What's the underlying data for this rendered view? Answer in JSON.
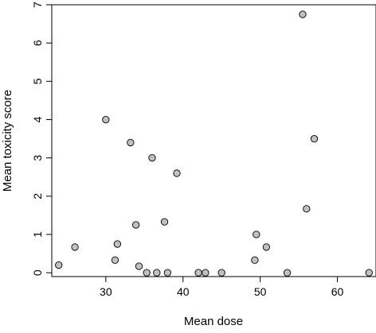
{
  "chart_data": {
    "type": "scatter",
    "title": "",
    "xlabel": "Mean dose",
    "ylabel": "Mean toxicity score",
    "xlim": [
      23,
      65
    ],
    "ylim": [
      -0.1,
      7
    ],
    "x_ticks": [
      30,
      40,
      50,
      60
    ],
    "y_ticks": [
      0,
      1,
      2,
      3,
      4,
      5,
      6,
      7
    ],
    "grid": false,
    "legend": "none",
    "marker_fill": "#c0c0c0",
    "marker_stroke": "#000000",
    "points": [
      {
        "x": 23.9,
        "y": 0.2
      },
      {
        "x": 26.0,
        "y": 0.67
      },
      {
        "x": 30.0,
        "y": 4.0
      },
      {
        "x": 31.2,
        "y": 0.33
      },
      {
        "x": 31.5,
        "y": 0.75
      },
      {
        "x": 33.2,
        "y": 3.4
      },
      {
        "x": 33.9,
        "y": 1.25
      },
      {
        "x": 34.3,
        "y": 0.17
      },
      {
        "x": 35.3,
        "y": 0.0
      },
      {
        "x": 36.0,
        "y": 3.0
      },
      {
        "x": 36.6,
        "y": 0.0
      },
      {
        "x": 37.6,
        "y": 1.33
      },
      {
        "x": 38.0,
        "y": 0.0
      },
      {
        "x": 39.2,
        "y": 2.6
      },
      {
        "x": 42.0,
        "y": 0.0
      },
      {
        "x": 42.9,
        "y": 0.0
      },
      {
        "x": 45.0,
        "y": 0.0
      },
      {
        "x": 49.3,
        "y": 0.33
      },
      {
        "x": 49.5,
        "y": 1.0
      },
      {
        "x": 50.8,
        "y": 0.67
      },
      {
        "x": 53.5,
        "y": 0.0
      },
      {
        "x": 55.5,
        "y": 6.75
      },
      {
        "x": 56.0,
        "y": 1.67
      },
      {
        "x": 57.0,
        "y": 3.5
      },
      {
        "x": 64.1,
        "y": 0.0
      }
    ]
  }
}
